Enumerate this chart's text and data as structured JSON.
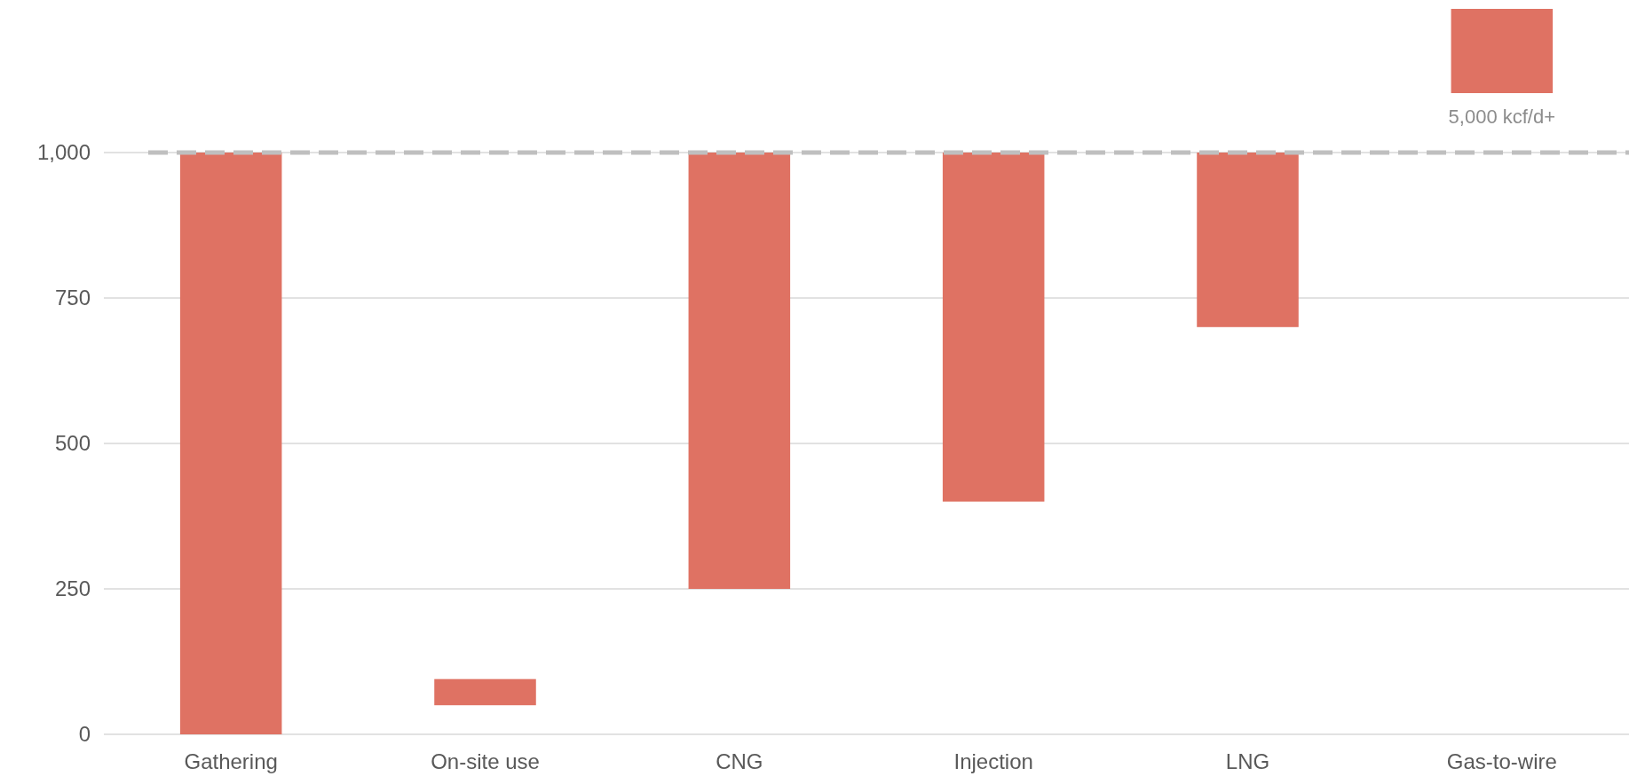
{
  "chart_data": {
    "type": "bar",
    "categories": [
      "Gathering",
      "On-site use",
      "CNG",
      "Injection",
      "LNG",
      "Gas-to-wire"
    ],
    "base": [
      0,
      50,
      250,
      400,
      700,
      null
    ],
    "values": [
      1000,
      45,
      750,
      600,
      300,
      null
    ],
    "color": "#df7263",
    "ylim": [
      0,
      1000
    ],
    "yticks": [
      0,
      250,
      500,
      750,
      {
        "value": 1000,
        "label": "1,000"
      }
    ],
    "grid": "y",
    "ref_lines": [
      {
        "axis": "y",
        "value": 1000,
        "color": "#bfbfbf",
        "line_style": "dashed"
      }
    ],
    "annotations": [
      "5,000 kcf/d+"
    ]
  }
}
